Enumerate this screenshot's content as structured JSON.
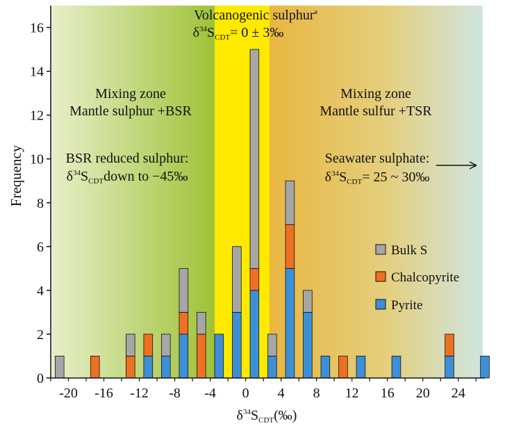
{
  "chart_data": {
    "type": "bar",
    "stacked": true,
    "xlabel": "δ34SCDT(‰)",
    "ylabel": "Frequency",
    "xlim": [
      -22,
      27
    ],
    "ylim": [
      0,
      17
    ],
    "x_ticks": [
      -20,
      -16,
      -12,
      -8,
      -4,
      0,
      4,
      8,
      12,
      16,
      20,
      24
    ],
    "y_ticks": [
      0,
      2,
      4,
      6,
      8,
      10,
      12,
      14,
      16
    ],
    "bar_width": 1.0,
    "x": [
      -21,
      -17,
      -13,
      -11,
      -9,
      -7,
      -5,
      -3,
      -1,
      1,
      3,
      5,
      7,
      9,
      11,
      13,
      17,
      19,
      23,
      27
    ],
    "series": [
      {
        "name": "Pyrite",
        "color": "#3d8fd6",
        "values": [
          0,
          0,
          0,
          1,
          1,
          2,
          0,
          2,
          3,
          4,
          1,
          5,
          3,
          1,
          0,
          1,
          1,
          0,
          1,
          1
        ]
      },
      {
        "name": "Chalcopyrite",
        "color": "#ee7022",
        "values": [
          0,
          1,
          1,
          1,
          0,
          1,
          2,
          0,
          0,
          1,
          0,
          2,
          0,
          0,
          1,
          0,
          0,
          0,
          1,
          0
        ]
      },
      {
        "name": "Bulk S",
        "color": "#a6a6a6",
        "values": [
          1,
          0,
          1,
          0,
          1,
          2,
          1,
          0,
          3,
          10,
          1,
          2,
          1,
          0,
          0,
          0,
          0,
          0,
          0,
          0
        ]
      }
    ],
    "legend_position": "right",
    "grid": false,
    "zones": [
      {
        "label_lines": [
          "Mixing zone",
          "Mantle sulphur +BSR"
        ],
        "color": "#a9c73a"
      },
      {
        "label_lines": [
          "Volcanogenic sulphur"
        ],
        "color": "#ffea00"
      },
      {
        "label_lines": [
          "Mixing zone",
          "Mantle sulfur +TSR"
        ],
        "color": "#e9b94a"
      }
    ],
    "annotations": {
      "volcanogenic_title": "Volcanogenic sulphur",
      "volcanogenic_sup": "a",
      "volcanogenic_range_prefix": "δ",
      "volcanogenic_range_sup": "34",
      "volcanogenic_range_s": "S",
      "volcanogenic_range_sub": "CDT",
      "volcanogenic_range_value": "= 0  ± 3‰",
      "bsr_title": "BSR reduced sulphur:",
      "bsr_prefix": "δ",
      "bsr_sup": "34",
      "bsr_s": "S",
      "bsr_sub": "CDT",
      "bsr_value": "down to −45‰",
      "sw_title": "Seawater sulphate:",
      "sw_prefix": "δ",
      "sw_sup": "34",
      "sw_s": "S",
      "sw_sub": "CDT",
      "sw_value": "= 25 ~ 30‰"
    },
    "xlabel_parts": {
      "prefix": "δ",
      "sup": "34",
      "s": "S",
      "sub": "CDT",
      "unit": "(‰)"
    }
  }
}
